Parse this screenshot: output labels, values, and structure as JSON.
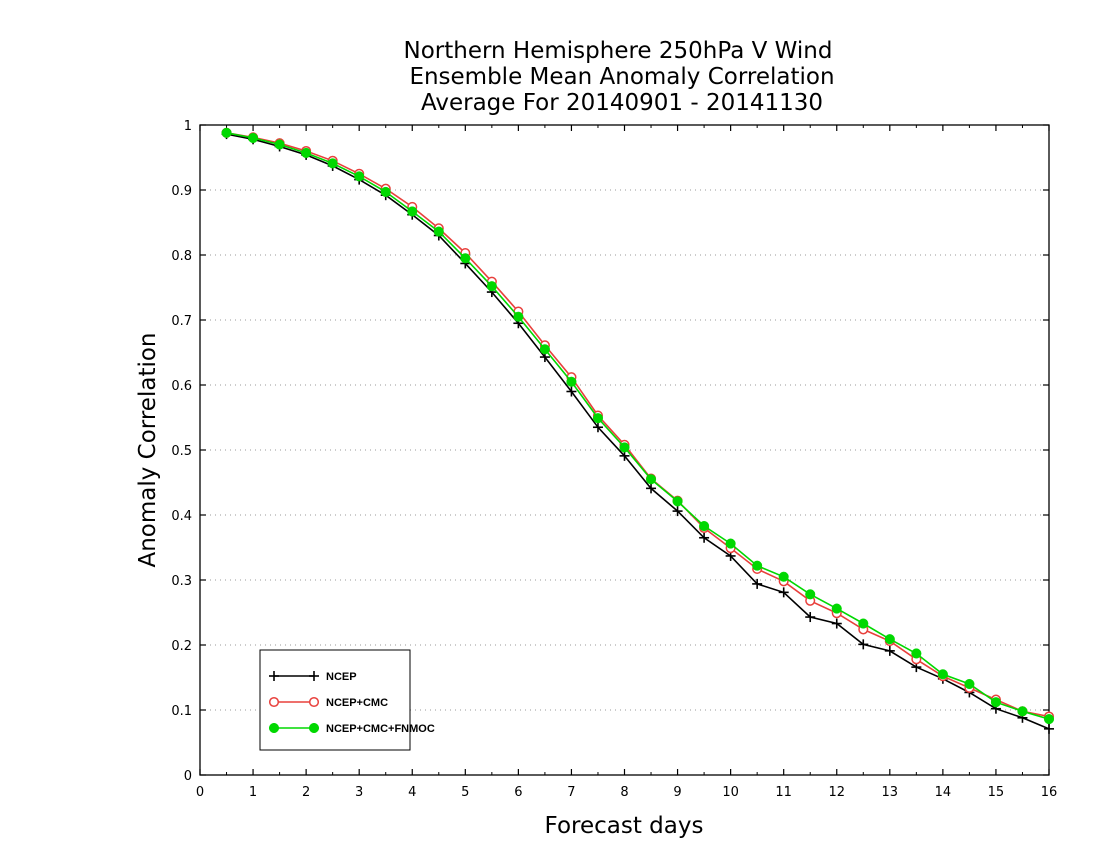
{
  "chart_data": {
    "type": "line",
    "title": [
      "Northern Hemisphere 250hPa V Wind",
      "Ensemble Mean Anomaly Correlation",
      "Average For 20140901 - 20141130"
    ],
    "xlabel": "Forecast days",
    "ylabel": "Anomaly Correlation",
    "xlim": [
      0,
      16
    ],
    "ylim": [
      0,
      1
    ],
    "xticks": [
      "0",
      "1",
      "2",
      "3",
      "4",
      "5",
      "6",
      "7",
      "8",
      "9",
      "10",
      "11",
      "12",
      "13",
      "14",
      "15",
      "16"
    ],
    "yticks": [
      "0",
      "0.1",
      "0.2",
      "0.3",
      "0.4",
      "0.5",
      "0.6",
      "0.7",
      "0.8",
      "0.9",
      "1"
    ],
    "grid": "horizontal dotted",
    "legend_position": "bottom-left",
    "x": [
      0.5,
      1,
      1.5,
      2,
      2.5,
      3,
      3.5,
      4,
      4.5,
      5,
      5.5,
      6,
      6.5,
      7,
      7.5,
      8,
      8.5,
      9,
      9.5,
      10,
      10.5,
      11,
      11.5,
      12,
      12.5,
      13,
      13.5,
      14,
      14.5,
      15,
      15.5,
      16
    ],
    "series": [
      {
        "name": "NCEP",
        "color": "#000000",
        "marker": "plus",
        "values": [
          0.986,
          0.978,
          0.967,
          0.954,
          0.937,
          0.916,
          0.892,
          0.862,
          0.83,
          0.787,
          0.743,
          0.695,
          0.643,
          0.59,
          0.535,
          0.491,
          0.441,
          0.406,
          0.365,
          0.337,
          0.294,
          0.281,
          0.243,
          0.233,
          0.201,
          0.191,
          0.166,
          0.148,
          0.127,
          0.102,
          0.088,
          0.071
        ]
      },
      {
        "name": "NCEP+CMC",
        "color": "#e8403c",
        "marker": "open-circle",
        "values": [
          0.988,
          0.981,
          0.972,
          0.96,
          0.945,
          0.925,
          0.902,
          0.874,
          0.841,
          0.803,
          0.759,
          0.713,
          0.661,
          0.612,
          0.553,
          0.508,
          0.456,
          0.422,
          0.38,
          0.349,
          0.317,
          0.298,
          0.268,
          0.249,
          0.224,
          0.206,
          0.178,
          0.152,
          0.134,
          0.116,
          0.098,
          0.09
        ]
      },
      {
        "name": "NCEP+CMC+FNMOC",
        "color": "#00d800",
        "marker": "filled-circle",
        "values": [
          0.988,
          0.98,
          0.97,
          0.957,
          0.941,
          0.921,
          0.897,
          0.867,
          0.836,
          0.795,
          0.752,
          0.705,
          0.655,
          0.605,
          0.549,
          0.504,
          0.455,
          0.421,
          0.383,
          0.356,
          0.322,
          0.305,
          0.278,
          0.256,
          0.233,
          0.209,
          0.187,
          0.155,
          0.14,
          0.112,
          0.098,
          0.086
        ]
      }
    ]
  }
}
